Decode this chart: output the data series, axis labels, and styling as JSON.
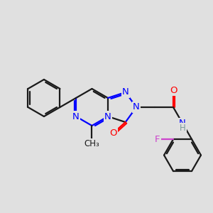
{
  "bg_color": "#e0e0e0",
  "bond_color": "#1a1a1a",
  "N_color": "#0000ff",
  "O_color": "#ff0000",
  "F_color": "#cc44cc",
  "H_color": "#7a9a9a",
  "lw": 1.6,
  "fs": 9.5,
  "BL": 26
}
